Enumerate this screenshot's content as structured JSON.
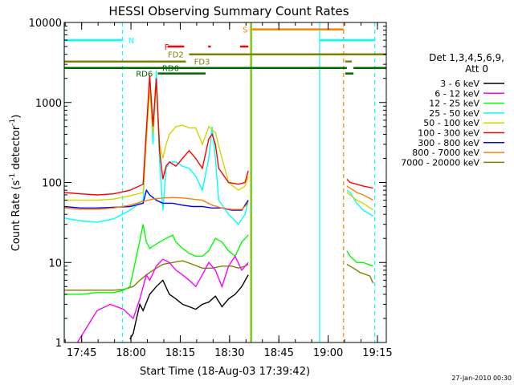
{
  "chart_data": {
    "type": "line",
    "title": "HESSI Observing Summary Count Rates",
    "xlabel": "Start Time (18-Aug-03 17:39:42)",
    "ylabel": "Count Rate (s",
    "ylabel_sup": "-1",
    "ylabel_tail": " detector",
    "ylabel_end": ")",
    "yscale": "log",
    "ylim": [
      1,
      10000
    ],
    "xlim_min": [
      0,
      98
    ],
    "yticks": [
      {
        "v": 1,
        "label": "1"
      },
      {
        "v": 10,
        "label": "10"
      },
      {
        "v": 100,
        "label": "100"
      },
      {
        "v": 1000,
        "label": "1000"
      },
      {
        "v": 10000,
        "label": "10000"
      }
    ],
    "xticks": [
      {
        "t": 5.3,
        "label": "17:45"
      },
      {
        "t": 20.3,
        "label": "18:00"
      },
      {
        "t": 35.3,
        "label": "18:15"
      },
      {
        "t": 50.3,
        "label": "18:30"
      },
      {
        "t": 65.3,
        "label": "18:45"
      },
      {
        "t": 80.3,
        "label": "19:00"
      },
      {
        "t": 95.3,
        "label": "19:15"
      }
    ],
    "legend": {
      "position": "right",
      "header": [
        "Det 1,3,4,5,6,9,",
        "Att 0"
      ],
      "entries": [
        {
          "label": "3 - 6 keV",
          "color": "#000000"
        },
        {
          "label": "6 - 12 keV",
          "color": "#ff00ff"
        },
        {
          "label": "12 - 25 keV",
          "color": "#00ff00"
        },
        {
          "label": "25 - 50 keV",
          "color": "#00ffff"
        },
        {
          "label": "50 - 100 keV",
          "color": "#d4d400"
        },
        {
          "label": "100 - 300 keV",
          "color": "#ff0000"
        },
        {
          "label": "300 - 800 keV",
          "color": "#0000ff"
        },
        {
          "label": "800 - 7000 keV",
          "color": "#ff8000"
        },
        {
          "label": "7000 - 20000 keV",
          "color": "#7f7f00"
        }
      ]
    },
    "series": [
      {
        "name": "7000 - 20000 keV",
        "color": "#7f7f00",
        "points": [
          [
            0,
            4.5
          ],
          [
            5,
            4.5
          ],
          [
            10,
            4.5
          ],
          [
            15,
            4.5
          ],
          [
            18,
            4.6
          ],
          [
            21,
            5.0
          ],
          [
            23,
            6.0
          ],
          [
            25,
            7.0
          ],
          [
            27,
            8.0
          ],
          [
            30,
            9.5
          ],
          [
            33,
            10
          ],
          [
            36,
            10.5
          ],
          [
            39,
            9.5
          ],
          [
            42,
            8.5
          ],
          [
            45,
            8.5
          ],
          [
            48,
            9.0
          ],
          [
            51,
            9.0
          ],
          [
            53,
            8.5
          ],
          [
            55,
            9.0
          ],
          [
            56,
            9.5
          ]
        ]
      },
      {
        "name": "7000 - 20000 keV (late)",
        "color": "#7f7f00",
        "points": [
          [
            86,
            9.5
          ],
          [
            88,
            8.5
          ],
          [
            90,
            7.5
          ],
          [
            93,
            6.8
          ],
          [
            94,
            5.5
          ]
        ]
      },
      {
        "name": "12 - 25 keV",
        "color": "#00ff00",
        "points": [
          [
            0,
            4.0
          ],
          [
            5,
            4.0
          ],
          [
            10,
            4.2
          ],
          [
            15,
            4.2
          ],
          [
            18,
            4.5
          ],
          [
            20,
            5.0
          ],
          [
            22,
            12
          ],
          [
            24,
            30
          ],
          [
            25,
            18
          ],
          [
            26,
            15
          ],
          [
            27,
            16
          ],
          [
            29,
            18
          ],
          [
            31,
            20
          ],
          [
            33,
            22
          ],
          [
            34,
            18
          ],
          [
            36,
            15
          ],
          [
            38,
            13
          ],
          [
            40,
            12
          ],
          [
            42,
            12
          ],
          [
            44,
            14
          ],
          [
            46,
            20
          ],
          [
            48,
            18
          ],
          [
            50,
            14
          ],
          [
            52,
            12
          ],
          [
            54,
            18
          ],
          [
            56,
            22
          ]
        ]
      },
      {
        "name": "12 - 25 keV (late)",
        "color": "#00ff00",
        "points": [
          [
            86,
            14
          ],
          [
            87,
            12
          ],
          [
            89,
            10
          ],
          [
            91,
            10
          ],
          [
            94,
            9
          ]
        ]
      },
      {
        "name": "6 - 12 keV",
        "color": "#ff00ff",
        "points": [
          [
            4,
            1.0
          ],
          [
            10,
            2.5
          ],
          [
            14,
            3.0
          ],
          [
            18,
            2.6
          ],
          [
            21,
            2.0
          ],
          [
            23,
            3.5
          ],
          [
            25,
            7
          ],
          [
            26,
            6
          ],
          [
            28,
            9
          ],
          [
            30,
            11
          ],
          [
            32,
            10
          ],
          [
            34,
            8
          ],
          [
            36,
            7
          ],
          [
            38,
            6
          ],
          [
            40,
            5
          ],
          [
            42,
            7
          ],
          [
            44,
            10
          ],
          [
            46,
            8
          ],
          [
            48,
            5
          ],
          [
            50,
            9
          ],
          [
            52,
            12
          ],
          [
            54,
            8
          ],
          [
            56,
            10
          ]
        ]
      },
      {
        "name": "3 - 6 keV",
        "color": "#000000",
        "points": [
          [
            20,
            1.1
          ],
          [
            21,
            1.3
          ],
          [
            22,
            2.0
          ],
          [
            23,
            3.0
          ],
          [
            24,
            2.5
          ],
          [
            26,
            4.0
          ],
          [
            28,
            5
          ],
          [
            30,
            6
          ],
          [
            32,
            4
          ],
          [
            34,
            3.5
          ],
          [
            36,
            3.0
          ],
          [
            38,
            2.8
          ],
          [
            40,
            2.6
          ],
          [
            42,
            3.0
          ],
          [
            44,
            3.2
          ],
          [
            46,
            3.8
          ],
          [
            48,
            2.8
          ],
          [
            50,
            3.5
          ],
          [
            52,
            4.0
          ],
          [
            54,
            5
          ],
          [
            56,
            7
          ]
        ]
      },
      {
        "name": "25 - 50 keV",
        "color": "#00ffff",
        "points": [
          [
            0,
            36
          ],
          [
            5,
            33
          ],
          [
            10,
            32
          ],
          [
            15,
            35
          ],
          [
            20,
            45
          ],
          [
            24,
            60
          ],
          [
            26,
            2000
          ],
          [
            27,
            300
          ],
          [
            28,
            2500
          ],
          [
            29,
            180
          ],
          [
            30,
            45
          ],
          [
            31,
            150
          ],
          [
            32,
            180
          ],
          [
            34,
            180
          ],
          [
            36,
            160
          ],
          [
            38,
            150
          ],
          [
            40,
            120
          ],
          [
            42,
            80
          ],
          [
            44,
            200
          ],
          [
            45,
            500
          ],
          [
            46,
            200
          ],
          [
            47,
            60
          ],
          [
            50,
            40
          ],
          [
            53,
            30
          ],
          [
            55,
            40
          ],
          [
            56,
            60
          ]
        ]
      },
      {
        "name": "25 - 50 keV (late)",
        "color": "#00ffff",
        "points": [
          [
            86,
            80
          ],
          [
            87,
            75
          ],
          [
            89,
            55
          ],
          [
            91,
            45
          ],
          [
            94,
            38
          ]
        ]
      },
      {
        "name": "50 - 100 keV",
        "color": "#d4d400",
        "points": [
          [
            0,
            60
          ],
          [
            5,
            60
          ],
          [
            10,
            60
          ],
          [
            15,
            62
          ],
          [
            20,
            68
          ],
          [
            24,
            75
          ],
          [
            26,
            1500
          ],
          [
            27,
            400
          ],
          [
            28,
            1800
          ],
          [
            29,
            300
          ],
          [
            30,
            200
          ],
          [
            31,
            300
          ],
          [
            32,
            400
          ],
          [
            34,
            500
          ],
          [
            36,
            520
          ],
          [
            38,
            480
          ],
          [
            40,
            480
          ],
          [
            42,
            300
          ],
          [
            44,
            500
          ],
          [
            46,
            420
          ],
          [
            48,
            200
          ],
          [
            50,
            100
          ],
          [
            53,
            80
          ],
          [
            55,
            90
          ],
          [
            56,
            120
          ]
        ]
      },
      {
        "name": "50 - 100 keV (late)",
        "color": "#d4d400",
        "points": [
          [
            86,
            75
          ],
          [
            87,
            70
          ],
          [
            89,
            60
          ],
          [
            91,
            55
          ],
          [
            94,
            45
          ]
        ]
      },
      {
        "name": "100 - 300 keV",
        "color": "#ff0000",
        "points": [
          [
            0,
            75
          ],
          [
            5,
            72
          ],
          [
            10,
            70
          ],
          [
            15,
            72
          ],
          [
            20,
            80
          ],
          [
            24,
            95
          ],
          [
            26,
            2200
          ],
          [
            27,
            500
          ],
          [
            28,
            2000
          ],
          [
            29,
            250
          ],
          [
            30,
            110
          ],
          [
            31,
            160
          ],
          [
            32,
            180
          ],
          [
            34,
            160
          ],
          [
            36,
            200
          ],
          [
            38,
            250
          ],
          [
            40,
            200
          ],
          [
            42,
            150
          ],
          [
            44,
            350
          ],
          [
            45,
            400
          ],
          [
            46,
            300
          ],
          [
            47,
            150
          ],
          [
            50,
            100
          ],
          [
            53,
            95
          ],
          [
            55,
            100
          ],
          [
            56,
            140
          ]
        ]
      },
      {
        "name": "100 - 300 keV (late)",
        "color": "#ff0000",
        "points": [
          [
            86,
            110
          ],
          [
            87,
            100
          ],
          [
            89,
            95
          ],
          [
            91,
            90
          ],
          [
            94,
            85
          ]
        ]
      },
      {
        "name": "300 - 800 keV",
        "color": "#0000ff",
        "points": [
          [
            0,
            50
          ],
          [
            5,
            48
          ],
          [
            10,
            48
          ],
          [
            15,
            49
          ],
          [
            20,
            50
          ],
          [
            24,
            55
          ],
          [
            25,
            80
          ],
          [
            26,
            70
          ],
          [
            28,
            60
          ],
          [
            30,
            55
          ],
          [
            33,
            55
          ],
          [
            36,
            52
          ],
          [
            39,
            50
          ],
          [
            42,
            50
          ],
          [
            45,
            48
          ],
          [
            48,
            48
          ],
          [
            51,
            45
          ],
          [
            54,
            45
          ],
          [
            56,
            60
          ]
        ]
      },
      {
        "name": "800 - 7000 keV",
        "color": "#ff8000",
        "points": [
          [
            0,
            48
          ],
          [
            5,
            46
          ],
          [
            10,
            46
          ],
          [
            15,
            48
          ],
          [
            20,
            52
          ],
          [
            24,
            58
          ],
          [
            27,
            62
          ],
          [
            30,
            64
          ],
          [
            33,
            65
          ],
          [
            36,
            64
          ],
          [
            39,
            62
          ],
          [
            42,
            60
          ],
          [
            45,
            52
          ],
          [
            48,
            48
          ],
          [
            51,
            46
          ],
          [
            54,
            46
          ],
          [
            56,
            55
          ]
        ]
      },
      {
        "name": "800 - 7000 keV (late)",
        "color": "#ff8000",
        "points": [
          [
            86,
            90
          ],
          [
            87,
            85
          ],
          [
            89,
            75
          ],
          [
            91,
            70
          ],
          [
            94,
            60
          ]
        ]
      }
    ],
    "vlines": [
      {
        "t": 0,
        "color": "#00ffff",
        "style": "solid"
      },
      {
        "t": 17.7,
        "color": "#00ffff",
        "style": "dash"
      },
      {
        "t": 56.7,
        "color": "#ff8000",
        "style": "solid"
      },
      {
        "t": 57.0,
        "color": "#00ff00",
        "style": "solid"
      },
      {
        "t": 77.7,
        "color": "#00ffff",
        "style": "solid"
      },
      {
        "t": 85.0,
        "color": "#ff8000",
        "style": "dash"
      },
      {
        "t": 94.5,
        "color": "#00ffff",
        "style": "dash"
      }
    ],
    "flag_bars": [
      {
        "label": "N",
        "color": "#00ffff",
        "y": 6000,
        "segs": [
          [
            0,
            17.7
          ],
          [
            77.7,
            94.5
          ]
        ],
        "label_at": [
          19.5,
          6000
        ]
      },
      {
        "label": "S",
        "color": "#ff8000",
        "y": 8200,
        "segs": [
          [
            56.7,
            85.0
          ]
        ],
        "label_at": [
          54.3,
          8200
        ]
      },
      {
        "label": "F",
        "color": "#ff0000",
        "y": 5000,
        "segs": [
          [
            31.5,
            36.5
          ],
          [
            43.8,
            44.6
          ],
          [
            53.5,
            56
          ]
        ],
        "label_at": [
          30.5,
          5000
        ]
      },
      {
        "label": "FD2",
        "color": "#7f7f00",
        "y": 4000,
        "segs": [
          [
            38,
            98
          ]
        ],
        "label_at": [
          31.5,
          4000
        ]
      },
      {
        "label": "FD3",
        "color": "#7f7f00",
        "y": 3250,
        "segs": [
          [
            0,
            37
          ],
          [
            85.5,
            87.5
          ]
        ],
        "label_at": [
          39.5,
          3250
        ]
      },
      {
        "label": "RD0",
        "color": "#006400",
        "y": 2700,
        "segs": [
          [
            0,
            86
          ],
          [
            88,
            98
          ]
        ],
        "label_at": [
          29.8,
          2700
        ]
      },
      {
        "label": "RD6",
        "color": "#006400",
        "y": 2300,
        "segs": [
          [
            28.5,
            43
          ],
          [
            85.5,
            88
          ]
        ],
        "label_at": [
          21.8,
          2300
        ]
      }
    ],
    "footer_date": "27-Jan-2010 00:30"
  }
}
